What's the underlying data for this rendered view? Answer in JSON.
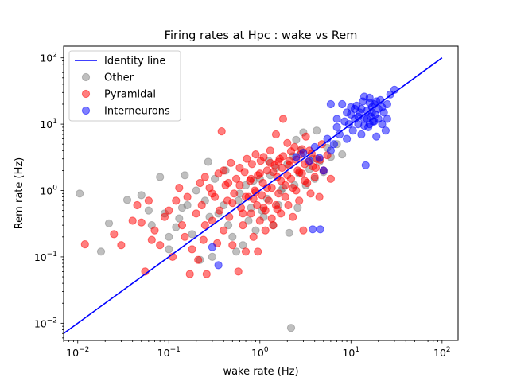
{
  "chart_data": {
    "type": "scatter",
    "title": "Firing rates at Hpc : wake vs Rem",
    "xlabel": "wake rate (Hz)",
    "ylabel": "Rem rate (Hz)",
    "xscale": "log",
    "yscale": "log",
    "xlim": [
      0.007,
      150
    ],
    "ylim": [
      0.0055,
      150
    ],
    "grid": false,
    "legend_position": "top-left",
    "x_ticks": [
      {
        "value": 0.01,
        "base": "10",
        "exp": "−2"
      },
      {
        "value": 0.1,
        "base": "10",
        "exp": "−1"
      },
      {
        "value": 1,
        "base": "10",
        "exp": "0"
      },
      {
        "value": 10,
        "base": "10",
        "exp": "1"
      },
      {
        "value": 100,
        "base": "10",
        "exp": "2"
      }
    ],
    "y_ticks": [
      {
        "value": 0.01,
        "base": "10",
        "exp": "−2"
      },
      {
        "value": 0.1,
        "base": "10",
        "exp": "−1"
      },
      {
        "value": 1,
        "base": "10",
        "exp": "0"
      },
      {
        "value": 10,
        "base": "10",
        "exp": "1"
      },
      {
        "value": 100,
        "base": "10",
        "exp": "2"
      }
    ],
    "identity_line": {
      "name": "Identity line",
      "color": "#0000ff",
      "x": [
        0.007,
        100
      ],
      "y": [
        0.007,
        100
      ]
    },
    "series": [
      {
        "name": "Other",
        "color": "#808080",
        "points": [
          [
            0.0105,
            0.9
          ],
          [
            0.018,
            0.12
          ],
          [
            0.022,
            0.32
          ],
          [
            0.035,
            0.72
          ],
          [
            0.05,
            0.85
          ],
          [
            0.06,
            0.5
          ],
          [
            0.065,
            0.3
          ],
          [
            0.08,
            1.6
          ],
          [
            0.09,
            0.45
          ],
          [
            0.1,
            0.13
          ],
          [
            0.1,
            0.2
          ],
          [
            0.12,
            0.28
          ],
          [
            0.13,
            0.38
          ],
          [
            0.15,
            1.7
          ],
          [
            0.16,
            0.6
          ],
          [
            0.18,
            0.22
          ],
          [
            0.2,
            1.0
          ],
          [
            0.22,
            0.09
          ],
          [
            0.25,
            0.7
          ],
          [
            0.27,
            2.7
          ],
          [
            0.3,
            0.1
          ],
          [
            0.32,
            1.5
          ],
          [
            0.35,
            0.45
          ],
          [
            0.4,
            0.6
          ],
          [
            0.45,
            0.3
          ],
          [
            0.5,
            0.2
          ],
          [
            0.55,
            0.12
          ],
          [
            0.6,
            0.9
          ],
          [
            0.65,
            0.15
          ],
          [
            0.7,
            1.2
          ],
          [
            0.75,
            0.35
          ],
          [
            0.8,
            0.55
          ],
          [
            0.9,
            0.25
          ],
          [
            1.0,
            1.5
          ],
          [
            1.1,
            0.4
          ],
          [
            1.2,
            0.75
          ],
          [
            1.3,
            1.7
          ],
          [
            1.4,
            0.3
          ],
          [
            1.5,
            2.2
          ],
          [
            1.6,
            0.6
          ],
          [
            1.8,
            1.1
          ],
          [
            2.0,
            2.5
          ],
          [
            2.1,
            0.23
          ],
          [
            2.2,
            0.0085
          ],
          [
            2.4,
            1.2
          ],
          [
            2.5,
            5.8
          ],
          [
            2.6,
            0.55
          ],
          [
            2.7,
            1.8
          ],
          [
            2.8,
            4.0
          ],
          [
            3.0,
            7.5
          ],
          [
            3.2,
            1.2
          ],
          [
            3.5,
            2.1
          ],
          [
            3.8,
            3.0
          ],
          [
            4.0,
            1.5
          ],
          [
            4.2,
            8.0
          ],
          [
            4.5,
            2.7
          ],
          [
            5.0,
            1.9
          ],
          [
            5.5,
            4.4
          ],
          [
            6.0,
            3.2
          ],
          [
            7.0,
            5.0
          ],
          [
            8.0,
            3.5
          ],
          [
            1.7,
            1.0
          ],
          [
            0.85,
            1.4
          ],
          [
            0.42,
            2.0
          ],
          [
            0.58,
            0.7
          ],
          [
            1.05,
            0.5
          ],
          [
            1.25,
            2.8
          ],
          [
            2.3,
            3.3
          ],
          [
            0.28,
            0.4
          ],
          [
            0.14,
            0.55
          ]
        ]
      },
      {
        "name": "Pyramidal",
        "color": "#ff0000",
        "points": [
          [
            0.012,
            0.155
          ],
          [
            0.025,
            0.22
          ],
          [
            0.03,
            0.15
          ],
          [
            0.04,
            0.35
          ],
          [
            0.045,
            0.6
          ],
          [
            0.05,
            0.33
          ],
          [
            0.055,
            0.06
          ],
          [
            0.06,
            0.7
          ],
          [
            0.065,
            0.18
          ],
          [
            0.07,
            0.25
          ],
          [
            0.08,
            0.15
          ],
          [
            0.09,
            0.4
          ],
          [
            0.1,
            0.5
          ],
          [
            0.11,
            0.1
          ],
          [
            0.12,
            0.7
          ],
          [
            0.13,
            1.1
          ],
          [
            0.14,
            0.3
          ],
          [
            0.15,
            0.2
          ],
          [
            0.16,
            0.8
          ],
          [
            0.17,
            0.055
          ],
          [
            0.18,
            0.13
          ],
          [
            0.2,
            0.45
          ],
          [
            0.21,
            0.09
          ],
          [
            0.22,
            1.3
          ],
          [
            0.23,
            0.6
          ],
          [
            0.24,
            0.18
          ],
          [
            0.25,
            0.3
          ],
          [
            0.26,
            0.055
          ],
          [
            0.28,
            1.1
          ],
          [
            0.3,
            0.35
          ],
          [
            0.32,
            0.8
          ],
          [
            0.34,
            0.16
          ],
          [
            0.35,
            1.8
          ],
          [
            0.36,
            0.5
          ],
          [
            0.38,
            7.8
          ],
          [
            0.4,
            0.25
          ],
          [
            0.42,
            1.2
          ],
          [
            0.44,
            0.7
          ],
          [
            0.46,
            0.4
          ],
          [
            0.48,
            2.6
          ],
          [
            0.5,
            0.15
          ],
          [
            0.52,
            0.9
          ],
          [
            0.55,
            1.5
          ],
          [
            0.58,
            0.06
          ],
          [
            0.6,
            2.2
          ],
          [
            0.62,
            0.55
          ],
          [
            0.65,
            0.3
          ],
          [
            0.68,
            1.9
          ],
          [
            0.7,
            0.12
          ],
          [
            0.72,
            3.0
          ],
          [
            0.75,
            0.8
          ],
          [
            0.78,
            1.4
          ],
          [
            0.8,
            0.45
          ],
          [
            0.82,
            2.5
          ],
          [
            0.85,
            0.2
          ],
          [
            0.88,
            1.0
          ],
          [
            0.9,
            3.5
          ],
          [
            0.93,
            0.6
          ],
          [
            0.95,
            1.7
          ],
          [
            1.0,
            0.35
          ],
          [
            1.02,
            2.8
          ],
          [
            1.05,
            0.85
          ],
          [
            1.08,
            1.3
          ],
          [
            1.1,
            3.2
          ],
          [
            1.15,
            0.5
          ],
          [
            1.2,
            2.0
          ],
          [
            1.25,
            0.7
          ],
          [
            1.3,
            4.0
          ],
          [
            1.35,
            1.1
          ],
          [
            1.4,
            0.3
          ],
          [
            1.45,
            2.4
          ],
          [
            1.5,
            7.0
          ],
          [
            1.55,
            1.6
          ],
          [
            1.6,
            0.9
          ],
          [
            1.65,
            3.0
          ],
          [
            1.7,
            0.45
          ],
          [
            1.75,
            2.2
          ],
          [
            1.8,
            12.0
          ],
          [
            1.9,
            1.2
          ],
          [
            2.0,
            5.2
          ],
          [
            2.05,
            0.6
          ],
          [
            2.1,
            2.8
          ],
          [
            2.2,
            1.5
          ],
          [
            2.3,
            0.4
          ],
          [
            2.4,
            4.5
          ],
          [
            2.5,
            1.0
          ],
          [
            2.6,
            2.0
          ],
          [
            2.7,
            0.7
          ],
          [
            2.8,
            3.5
          ],
          [
            2.9,
            1.8
          ],
          [
            3.0,
            0.25
          ],
          [
            3.1,
            2.5
          ],
          [
            3.2,
            6.5
          ],
          [
            3.3,
            1.3
          ],
          [
            3.5,
            4.0
          ],
          [
            3.6,
            0.9
          ],
          [
            3.8,
            2.3
          ],
          [
            4.0,
            1.6
          ],
          [
            4.2,
            3.0
          ],
          [
            4.5,
            0.8
          ],
          [
            4.8,
            5.0
          ],
          [
            5.0,
            2.0
          ],
          [
            5.5,
            3.4
          ],
          [
            6.0,
            1.5
          ],
          [
            0.3,
            0.9
          ],
          [
            0.4,
            2.0
          ],
          [
            0.5,
            0.65
          ],
          [
            0.6,
            1.2
          ],
          [
            0.7,
            0.8
          ],
          [
            0.8,
            1.5
          ],
          [
            0.9,
            0.95
          ],
          [
            1.0,
            1.8
          ],
          [
            1.1,
            0.55
          ],
          [
            1.2,
            1.1
          ],
          [
            1.3,
            2.6
          ],
          [
            1.4,
            1.9
          ],
          [
            1.5,
            0.6
          ],
          [
            1.6,
            2.7
          ],
          [
            1.7,
            1.4
          ],
          [
            1.8,
            3.3
          ],
          [
            1.9,
            0.8
          ],
          [
            2.0,
            1.7
          ],
          [
            2.1,
            2.4
          ],
          [
            2.2,
            3.9
          ],
          [
            2.3,
            1.1
          ],
          [
            2.5,
            2.9
          ],
          [
            2.7,
            1.9
          ],
          [
            2.9,
            4.2
          ],
          [
            3.1,
            1.4
          ],
          [
            3.4,
            2.7
          ],
          [
            3.7,
            3.6
          ],
          [
            4.1,
            2.2
          ],
          [
            4.6,
            2.9
          ],
          [
            0.25,
            1.6
          ],
          [
            0.45,
            1.3
          ],
          [
            0.65,
            0.45
          ],
          [
            0.85,
            0.75
          ],
          [
            1.15,
            0.25
          ],
          [
            1.35,
            0.38
          ],
          [
            1.55,
            0.52
          ],
          [
            0.95,
            0.12
          ]
        ]
      },
      {
        "name": "Interneurons",
        "color": "#0000ff",
        "points": [
          [
            0.35,
            0.075
          ],
          [
            0.3,
            0.14
          ],
          [
            3.8,
            0.26
          ],
          [
            4.6,
            0.26
          ],
          [
            5.0,
            2.0
          ],
          [
            6.0,
            4.0
          ],
          [
            6.5,
            5.0
          ],
          [
            7.0,
            9.0
          ],
          [
            7.5,
            7.0
          ],
          [
            8.0,
            20.0
          ],
          [
            9.0,
            6.0
          ],
          [
            9.5,
            10.0
          ],
          [
            10.0,
            14.0
          ],
          [
            10.5,
            8.0
          ],
          [
            11.0,
            12.0
          ],
          [
            11.5,
            19.0
          ],
          [
            12.0,
            10.0
          ],
          [
            12.5,
            15.0
          ],
          [
            13.0,
            7.0
          ],
          [
            13.5,
            22.0
          ],
          [
            14.0,
            12.0
          ],
          [
            14.5,
            2.4
          ],
          [
            15.0,
            16.0
          ],
          [
            15.5,
            9.0
          ],
          [
            16.0,
            25.0
          ],
          [
            16.5,
            13.0
          ],
          [
            17.0,
            18.0
          ],
          [
            17.5,
            11.0
          ],
          [
            18.0,
            20.0
          ],
          [
            18.5,
            14.0
          ],
          [
            19.0,
            6.5
          ],
          [
            20.0,
            17.0
          ],
          [
            21.0,
            23.0
          ],
          [
            22.0,
            10.0
          ],
          [
            23.0,
            15.0
          ],
          [
            24.0,
            8.0
          ],
          [
            25.0,
            20.0
          ],
          [
            27.0,
            28.0
          ],
          [
            30.0,
            33.0
          ],
          [
            11.0,
            17.0
          ],
          [
            12.0,
            13.0
          ],
          [
            13.0,
            17.0
          ],
          [
            14.0,
            9.5
          ],
          [
            15.0,
            12.0
          ],
          [
            16.0,
            10.0
          ],
          [
            17.0,
            15.0
          ],
          [
            18.0,
            11.0
          ],
          [
            19.0,
            22.0
          ],
          [
            10.0,
            18.0
          ],
          [
            8.5,
            11.0
          ],
          [
            9.0,
            15.0
          ],
          [
            5.5,
            6.0
          ],
          [
            4.0,
            4.5
          ],
          [
            3.5,
            2.8
          ],
          [
            2.5,
            3.2
          ],
          [
            3.0,
            3.7
          ],
          [
            4.5,
            3.1
          ],
          [
            7.0,
            12.0
          ],
          [
            6.0,
            20.0
          ],
          [
            20.0,
            12.0
          ],
          [
            22.0,
            18.0
          ],
          [
            16.0,
            21.0
          ],
          [
            14.0,
            26.0
          ],
          [
            25.0,
            12.0
          ]
        ]
      }
    ]
  }
}
